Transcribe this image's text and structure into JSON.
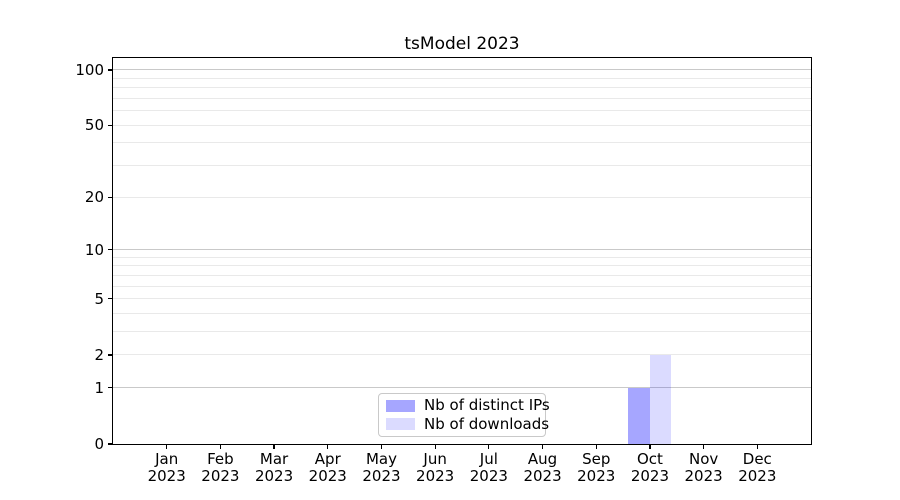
{
  "chart_data": {
    "type": "bar",
    "title": "tsModel 2023",
    "categories": [
      {
        "month": "Jan",
        "year": "2023"
      },
      {
        "month": "Feb",
        "year": "2023"
      },
      {
        "month": "Mar",
        "year": "2023"
      },
      {
        "month": "Apr",
        "year": "2023"
      },
      {
        "month": "May",
        "year": "2023"
      },
      {
        "month": "Jun",
        "year": "2023"
      },
      {
        "month": "Jul",
        "year": "2023"
      },
      {
        "month": "Aug",
        "year": "2023"
      },
      {
        "month": "Sep",
        "year": "2023"
      },
      {
        "month": "Oct",
        "year": "2023"
      },
      {
        "month": "Nov",
        "year": "2023"
      },
      {
        "month": "Dec",
        "year": "2023"
      }
    ],
    "series": [
      {
        "name": "Nb of distinct IPs",
        "color": "#0000ff59",
        "values": [
          0,
          0,
          0,
          0,
          0,
          0,
          0,
          0,
          0,
          1,
          0,
          0
        ]
      },
      {
        "name": "Nb of downloads",
        "color": "#0000ff24",
        "values": [
          0,
          0,
          0,
          0,
          0,
          0,
          0,
          0,
          0,
          2,
          0,
          0
        ]
      }
    ],
    "xlabel": "",
    "ylabel": "",
    "yscale": "log1p",
    "ylim": [
      0,
      116
    ],
    "yticks": [
      0,
      1,
      2,
      5,
      10,
      20,
      50,
      100
    ],
    "major_gridlines": [
      1,
      10,
      100
    ],
    "minor_gridlines": [
      2,
      3,
      4,
      5,
      6,
      7,
      8,
      9,
      20,
      30,
      40,
      50,
      60,
      70,
      80,
      90
    ],
    "grid": "horizontal",
    "legend_position": "lower center",
    "colors": {
      "major_grid": "#c9c9c9",
      "minor_grid": "#e9e9e9",
      "spine": "#000000",
      "text": "#000000",
      "background": "#ffffff"
    }
  }
}
